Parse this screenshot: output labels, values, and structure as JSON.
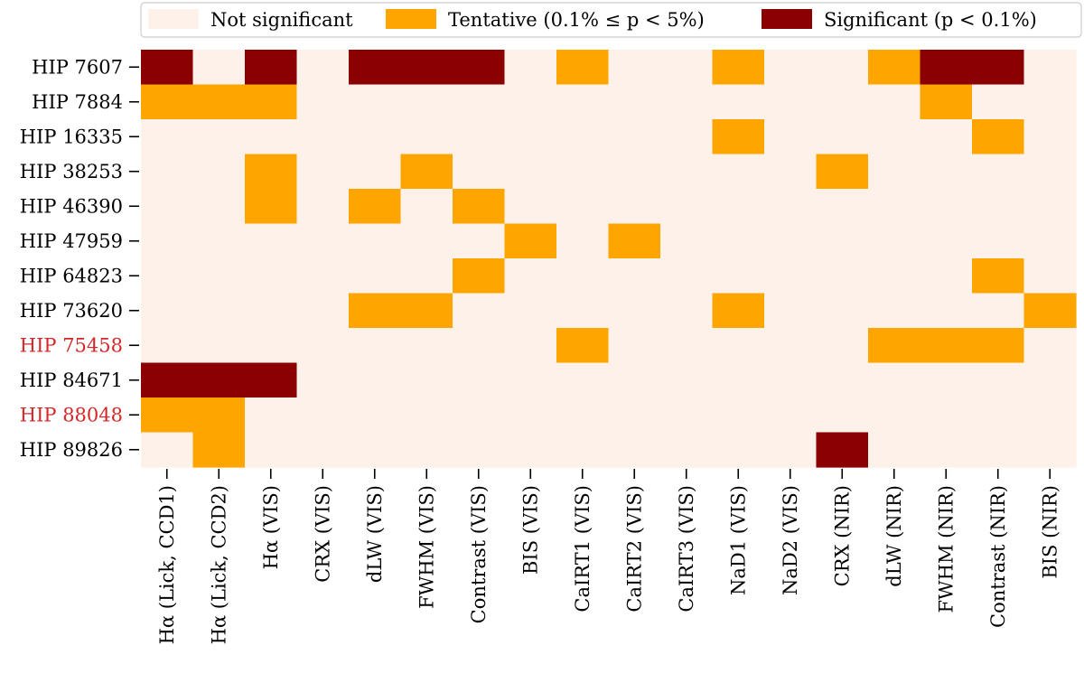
{
  "chart_data": {
    "type": "heatmap",
    "title": "",
    "xlabel": "",
    "ylabel": "",
    "rows": [
      "HIP 7607",
      "HIP 7884",
      "HIP 16335",
      "HIP 38253",
      "HIP 46390",
      "HIP 47959",
      "HIP 64823",
      "HIP 73620",
      "HIP 75458",
      "HIP 84671",
      "HIP 88048",
      "HIP 89826"
    ],
    "highlighted_rows": [
      "HIP 75458",
      "HIP 88048"
    ],
    "columns": [
      "Hα (Lick, CCD1)",
      "Hα (Lick, CCD2)",
      "Hα (VIS)",
      "CRX (VIS)",
      "dLW (VIS)",
      "FWHM (VIS)",
      "Contrast (VIS)",
      "BIS (VIS)",
      "CaIRT1 (VIS)",
      "CaIRT2 (VIS)",
      "CaIRT3 (VIS)",
      "NaD1 (VIS)",
      "NaD2 (VIS)",
      "CRX (NIR)",
      "dLW (NIR)",
      "FWHM (NIR)",
      "Contrast (NIR)",
      "BIS (NIR)"
    ],
    "categories": [
      {
        "level": 0,
        "label": "Not significant",
        "color": "#fdf1ea"
      },
      {
        "level": 1,
        "label": "Tentative (0.1% ≤ p < 5%)",
        "color": "#ffa500"
      },
      {
        "level": 2,
        "label": "Significant (p < 0.1%)",
        "color": "#8b0000"
      }
    ],
    "values": [
      [
        2,
        0,
        2,
        0,
        2,
        2,
        2,
        0,
        1,
        0,
        0,
        1,
        0,
        0,
        1,
        2,
        2,
        0
      ],
      [
        1,
        1,
        1,
        0,
        0,
        0,
        0,
        0,
        0,
        0,
        0,
        0,
        0,
        0,
        0,
        1,
        0,
        0
      ],
      [
        0,
        0,
        0,
        0,
        0,
        0,
        0,
        0,
        0,
        0,
        0,
        1,
        0,
        0,
        0,
        0,
        1,
        0
      ],
      [
        0,
        0,
        1,
        0,
        0,
        1,
        0,
        0,
        0,
        0,
        0,
        0,
        0,
        1,
        0,
        0,
        0,
        0
      ],
      [
        0,
        0,
        1,
        0,
        1,
        0,
        1,
        0,
        0,
        0,
        0,
        0,
        0,
        0,
        0,
        0,
        0,
        0
      ],
      [
        0,
        0,
        0,
        0,
        0,
        0,
        0,
        1,
        0,
        1,
        0,
        0,
        0,
        0,
        0,
        0,
        0,
        0
      ],
      [
        0,
        0,
        0,
        0,
        0,
        0,
        1,
        0,
        0,
        0,
        0,
        0,
        0,
        0,
        0,
        0,
        1,
        0
      ],
      [
        0,
        0,
        0,
        0,
        1,
        1,
        0,
        0,
        0,
        0,
        0,
        1,
        0,
        0,
        0,
        0,
        0,
        1
      ],
      [
        0,
        0,
        0,
        0,
        0,
        0,
        0,
        0,
        1,
        0,
        0,
        0,
        0,
        0,
        1,
        1,
        1,
        0
      ],
      [
        2,
        2,
        2,
        0,
        0,
        0,
        0,
        0,
        0,
        0,
        0,
        0,
        0,
        0,
        0,
        0,
        0,
        0
      ],
      [
        1,
        1,
        0,
        0,
        0,
        0,
        0,
        0,
        0,
        0,
        0,
        0,
        0,
        0,
        0,
        0,
        0,
        0
      ],
      [
        0,
        1,
        0,
        0,
        0,
        0,
        0,
        0,
        0,
        0,
        0,
        0,
        0,
        2,
        0,
        0,
        0,
        0
      ]
    ],
    "highlight_color": "#d62728",
    "legend_position": "top-right"
  }
}
